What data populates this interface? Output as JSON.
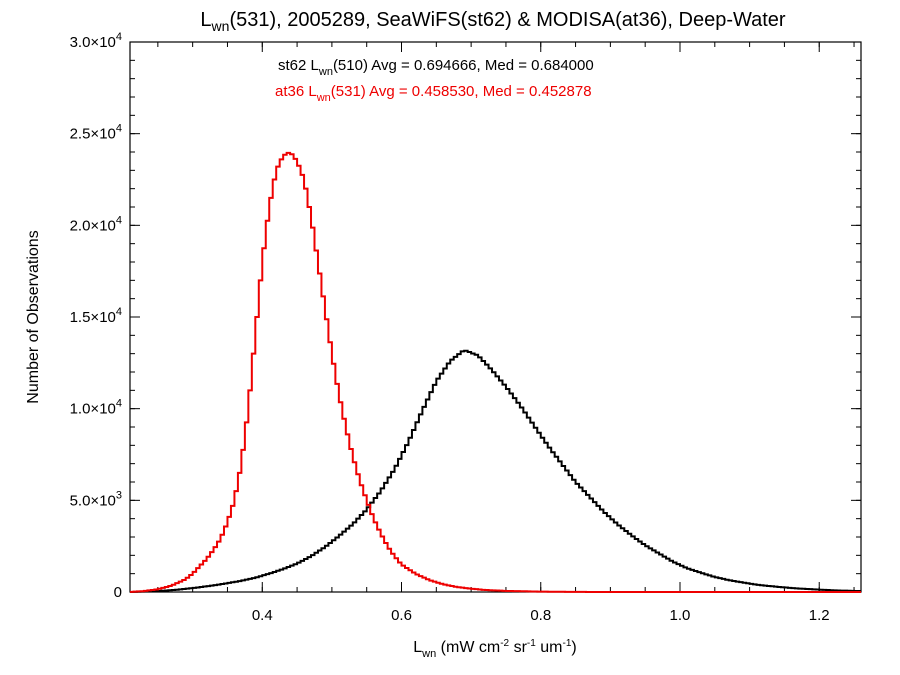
{
  "chart_data": {
    "type": "line",
    "title_parts": {
      "pre": "L",
      "sub": "wn",
      "post": "(531), 2005289, SeaWiFS(st62) & MODISA(at36), Deep-Water"
    },
    "xlabel_parts": {
      "pre": "L",
      "sub": "wn",
      "mid1": " (mW cm",
      "sup1": "-2",
      "mid2": " sr",
      "sup2": "-1",
      "mid3": " um",
      "sup3": "-1",
      "post": ")"
    },
    "ylabel": "Number of Observations",
    "xlim": [
      0.21,
      1.26
    ],
    "ylim": [
      0,
      30000
    ],
    "x_ticks": [
      {
        "value": 0.4,
        "label": "0.4"
      },
      {
        "value": 0.6,
        "label": "0.6"
      },
      {
        "value": 0.8,
        "label": "0.8"
      },
      {
        "value": 1.0,
        "label": "1.0"
      },
      {
        "value": 1.2,
        "label": "1.2"
      }
    ],
    "x_minor_step": 0.05,
    "y_ticks": [
      {
        "value": 0,
        "mant": "0",
        "exp": ""
      },
      {
        "value": 5000,
        "mant": "5.0×10",
        "exp": "3"
      },
      {
        "value": 10000,
        "mant": "1.0×10",
        "exp": "4"
      },
      {
        "value": 15000,
        "mant": "1.5×10",
        "exp": "4"
      },
      {
        "value": 20000,
        "mant": "2.0×10",
        "exp": "4"
      },
      {
        "value": 25000,
        "mant": "2.5×10",
        "exp": "4"
      },
      {
        "value": 30000,
        "mant": "3.0×10",
        "exp": "4"
      }
    ],
    "y_minor_step": 1000,
    "grid": false,
    "annotations": [
      {
        "color": "#000000",
        "pre": "st62 L",
        "sub": "wn",
        "post": "(510) Avg = 0.694666, Med = 0.684000"
      },
      {
        "color": "#ee0000",
        "pre": "at36 L",
        "sub": "wn",
        "post": "(531) Avg = 0.458530, Med = 0.452878"
      }
    ],
    "bin_width": 0.005,
    "series": [
      {
        "color": "#000000",
        "x": [
          0.21,
          0.23,
          0.25,
          0.27,
          0.29,
          0.31,
          0.33,
          0.35,
          0.37,
          0.39,
          0.41,
          0.43,
          0.45,
          0.47,
          0.49,
          0.51,
          0.53,
          0.55,
          0.57,
          0.59,
          0.61,
          0.63,
          0.65,
          0.67,
          0.69,
          0.71,
          0.73,
          0.75,
          0.77,
          0.79,
          0.81,
          0.83,
          0.85,
          0.87,
          0.89,
          0.91,
          0.93,
          0.95,
          0.97,
          0.99,
          1.01,
          1.03,
          1.05,
          1.07,
          1.09,
          1.11,
          1.13,
          1.15,
          1.17,
          1.19,
          1.21,
          1.23,
          1.26
        ],
        "y": [
          0,
          20,
          50,
          100,
          170,
          260,
          360,
          480,
          610,
          780,
          1000,
          1250,
          1550,
          1950,
          2450,
          3050,
          3700,
          4500,
          5500,
          6700,
          8200,
          9900,
          11500,
          12600,
          13200,
          12900,
          12100,
          11200,
          10200,
          9100,
          8000,
          7000,
          6000,
          5200,
          4400,
          3700,
          3100,
          2550,
          2100,
          1650,
          1300,
          1050,
          820,
          650,
          520,
          400,
          320,
          250,
          190,
          150,
          110,
          80,
          50
        ]
      },
      {
        "color": "#ee0000",
        "x": [
          0.21,
          0.23,
          0.25,
          0.27,
          0.29,
          0.3,
          0.31,
          0.32,
          0.33,
          0.34,
          0.35,
          0.36,
          0.37,
          0.38,
          0.39,
          0.4,
          0.41,
          0.42,
          0.43,
          0.44,
          0.45,
          0.46,
          0.47,
          0.48,
          0.49,
          0.5,
          0.51,
          0.52,
          0.53,
          0.54,
          0.55,
          0.56,
          0.57,
          0.58,
          0.59,
          0.6,
          0.62,
          0.64,
          0.66,
          0.68,
          0.7,
          0.72,
          0.75,
          0.8,
          0.85,
          0.9,
          1.0,
          1.26
        ],
        "y": [
          0,
          50,
          150,
          350,
          700,
          1000,
          1400,
          1800,
          2300,
          2900,
          3800,
          5000,
          7000,
          10000,
          14000,
          18000,
          21000,
          23000,
          23800,
          24000,
          23500,
          22500,
          20500,
          18000,
          15500,
          13000,
          10800,
          9000,
          7400,
          6100,
          5000,
          4000,
          3200,
          2500,
          1950,
          1500,
          1000,
          650,
          420,
          270,
          180,
          110,
          60,
          20,
          5,
          0,
          0,
          0
        ]
      }
    ]
  }
}
